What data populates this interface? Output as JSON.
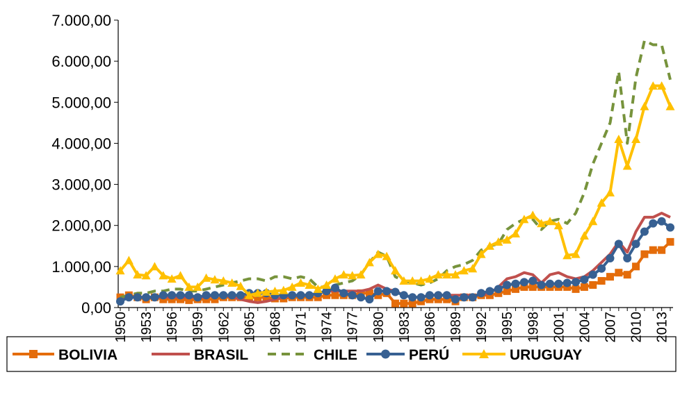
{
  "chart_data": {
    "type": "line",
    "categories": [
      "1950",
      null,
      null,
      "1953",
      null,
      null,
      "1956",
      null,
      null,
      "1959",
      null,
      null,
      "1962",
      null,
      null,
      "1965",
      null,
      null,
      "1968",
      null,
      null,
      "1971",
      null,
      null,
      "1974",
      null,
      null,
      "1977",
      null,
      null,
      "1980",
      null,
      null,
      "1983",
      null,
      null,
      "1986",
      null,
      null,
      "1989",
      null,
      null,
      "1992",
      null,
      null,
      "1995",
      null,
      null,
      "1998",
      null,
      null,
      "2001",
      null,
      null,
      "2004",
      null,
      null,
      "2007",
      null,
      null,
      "2010",
      null,
      null,
      "2013",
      null
    ],
    "ylim": [
      0,
      7000
    ],
    "yticks": [
      {
        "value": 0,
        "label": "0,00"
      },
      {
        "value": 1000,
        "label": "1.000,00"
      },
      {
        "value": 2000,
        "label": "2.000,00"
      },
      {
        "value": 3000,
        "label": "3.000,00"
      },
      {
        "value": 4000,
        "label": "4.000,00"
      },
      {
        "value": 5000,
        "label": "5.000,00"
      },
      {
        "value": 6000,
        "label": "6.000,00"
      },
      {
        "value": 7000,
        "label": "7.000,00"
      }
    ],
    "grid": false,
    "legend": "bottom",
    "series": [
      {
        "name": "BOLIVIA",
        "color": "#e46c0a",
        "marker": "square",
        "dash": false,
        "values": [
          250,
          300,
          250,
          200,
          250,
          200,
          200,
          200,
          180,
          200,
          200,
          200,
          250,
          250,
          250,
          250,
          250,
          250,
          220,
          220,
          250,
          250,
          250,
          250,
          300,
          300,
          300,
          300,
          350,
          350,
          300,
          350,
          100,
          100,
          100,
          150,
          200,
          200,
          200,
          150,
          250,
          250,
          300,
          300,
          350,
          400,
          450,
          500,
          500,
          500,
          500,
          500,
          500,
          450,
          500,
          550,
          650,
          750,
          850,
          800,
          1000,
          1300,
          1400,
          1400,
          1600
        ]
      },
      {
        "name": "BRASIL",
        "color": "#c0504d",
        "marker": "none",
        "dash": false,
        "values": [
          200,
          250,
          250,
          250,
          250,
          250,
          250,
          250,
          250,
          250,
          250,
          300,
          300,
          250,
          200,
          150,
          120,
          150,
          200,
          250,
          280,
          300,
          300,
          350,
          400,
          400,
          400,
          400,
          400,
          450,
          550,
          450,
          400,
          300,
          250,
          250,
          300,
          300,
          300,
          300,
          300,
          300,
          300,
          350,
          500,
          700,
          750,
          850,
          800,
          600,
          800,
          850,
          750,
          700,
          750,
          900,
          1100,
          1300,
          1600,
          1350,
          1850,
          2200,
          2200,
          2300,
          2200
        ]
      },
      {
        "name": "CHILE",
        "color": "#77933c",
        "marker": "none",
        "dash": true,
        "values": [
          250,
          300,
          350,
          350,
          400,
          400,
          450,
          450,
          400,
          400,
          450,
          500,
          550,
          600,
          650,
          700,
          700,
          650,
          750,
          750,
          700,
          750,
          700,
          500,
          500,
          550,
          600,
          650,
          800,
          1100,
          1350,
          1250,
          750,
          650,
          600,
          550,
          600,
          700,
          900,
          1000,
          1050,
          1150,
          1400,
          1500,
          1550,
          1900,
          2050,
          2150,
          2150,
          1900,
          2100,
          2150,
          2050,
          2300,
          2800,
          3500,
          4000,
          4500,
          5750,
          4000,
          5600,
          6500,
          6400,
          6400,
          5550
        ]
      },
      {
        "name": "PERÚ",
        "color": "#376092",
        "marker": "circle",
        "dash": false,
        "values": [
          150,
          250,
          250,
          250,
          250,
          300,
          300,
          300,
          300,
          250,
          300,
          300,
          300,
          300,
          300,
          350,
          350,
          350,
          300,
          300,
          300,
          300,
          300,
          350,
          400,
          480,
          350,
          300,
          250,
          200,
          400,
          400,
          380,
          300,
          250,
          250,
          300,
          300,
          300,
          200,
          250,
          250,
          350,
          400,
          450,
          550,
          580,
          620,
          650,
          550,
          580,
          580,
          600,
          620,
          680,
          800,
          950,
          1200,
          1550,
          1200,
          1550,
          1850,
          2050,
          2100,
          1950
        ]
      },
      {
        "name": "URUGUAY",
        "color": "#ffc000",
        "marker": "triangle",
        "dash": false,
        "values": [
          900,
          1150,
          800,
          780,
          1000,
          780,
          700,
          780,
          500,
          500,
          720,
          680,
          650,
          600,
          520,
          300,
          350,
          380,
          400,
          420,
          500,
          600,
          550,
          450,
          550,
          700,
          800,
          780,
          800,
          1100,
          1300,
          1250,
          900,
          650,
          650,
          650,
          700,
          800,
          800,
          800,
          900,
          950,
          1300,
          1500,
          1600,
          1650,
          1800,
          2150,
          2250,
          2050,
          2100,
          2000,
          1270,
          1300,
          1750,
          2100,
          2550,
          2800,
          4100,
          3450,
          4100,
          4900,
          5400,
          5400,
          4900
        ]
      }
    ]
  }
}
